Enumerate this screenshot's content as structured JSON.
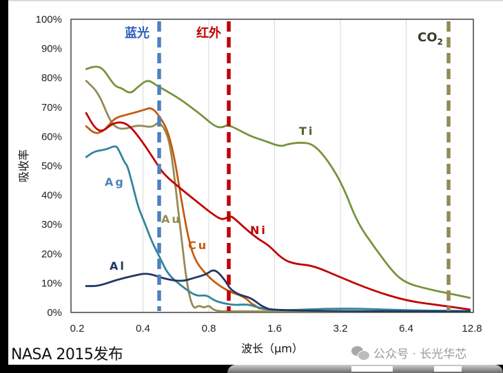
{
  "chart_data": {
    "type": "line",
    "title": "",
    "xlabel": "波长（μm）",
    "ylabel": "吸收率",
    "x_scale": "log2",
    "xlim": [
      0.2,
      12.8
    ],
    "ylim": [
      0,
      100
    ],
    "x_ticks": [
      "0.2",
      "0.4",
      "0.8",
      "1.6",
      "3.2",
      "6.4",
      "12.8"
    ],
    "y_ticks": [
      "0%",
      "10%",
      "20%",
      "30%",
      "40%",
      "50%",
      "60%",
      "70%",
      "80%",
      "90%",
      "100%"
    ],
    "grid": "vertical gridlines only",
    "legend": "inline labels next to curves",
    "series": [
      {
        "name": "Ti",
        "color": "#77933C",
        "points": [
          [
            0.22,
            83
          ],
          [
            0.24,
            84
          ],
          [
            0.26,
            83.5
          ],
          [
            0.28,
            80
          ],
          [
            0.3,
            77
          ],
          [
            0.32,
            76.5
          ],
          [
            0.35,
            74.5
          ],
          [
            0.38,
            77
          ],
          [
            0.42,
            79.5
          ],
          [
            0.46,
            77.5
          ],
          [
            0.5,
            76
          ],
          [
            0.6,
            72.5
          ],
          [
            0.75,
            67
          ],
          [
            0.85,
            63.5
          ],
          [
            0.92,
            63
          ],
          [
            0.97,
            64
          ],
          [
            1.05,
            63
          ],
          [
            1.25,
            60
          ],
          [
            1.45,
            58.5
          ],
          [
            1.7,
            56.5
          ],
          [
            1.85,
            57.5
          ],
          [
            2.1,
            58
          ],
          [
            2.4,
            57.5
          ],
          [
            2.8,
            52
          ],
          [
            3.3,
            43
          ],
          [
            3.8,
            31
          ],
          [
            4.6,
            22
          ],
          [
            5.6,
            13.5
          ],
          [
            6.4,
            10
          ],
          [
            8,
            8
          ],
          [
            10,
            6.5
          ],
          [
            12.5,
            5
          ]
        ]
      },
      {
        "name": "Au",
        "color": "#948A54",
        "points": [
          [
            0.22,
            79
          ],
          [
            0.25,
            75
          ],
          [
            0.28,
            66
          ],
          [
            0.3,
            63
          ],
          [
            0.33,
            62.5
          ],
          [
            0.38,
            64
          ],
          [
            0.44,
            63
          ],
          [
            0.47,
            65
          ],
          [
            0.5,
            63
          ],
          [
            0.53,
            58
          ],
          [
            0.56,
            45
          ],
          [
            0.6,
            25
          ],
          [
            0.64,
            8
          ],
          [
            0.68,
            1
          ],
          [
            0.72,
            2.5
          ],
          [
            0.76,
            1.5
          ],
          [
            0.8,
            2.5
          ],
          [
            0.85,
            0.5
          ],
          [
            1,
            0.3
          ],
          [
            12.5,
            0.2
          ]
        ]
      },
      {
        "name": "Cu",
        "color": "#C55A11",
        "points": [
          [
            0.22,
            63.5
          ],
          [
            0.24,
            61
          ],
          [
            0.26,
            61.5
          ],
          [
            0.28,
            64
          ],
          [
            0.3,
            66.5
          ],
          [
            0.34,
            67.5
          ],
          [
            0.4,
            69
          ],
          [
            0.44,
            70
          ],
          [
            0.48,
            66.5
          ],
          [
            0.52,
            62
          ],
          [
            0.56,
            52
          ],
          [
            0.6,
            38
          ],
          [
            0.65,
            24
          ],
          [
            0.7,
            17
          ],
          [
            0.8,
            12
          ],
          [
            0.9,
            9
          ],
          [
            1,
            7
          ],
          [
            1.1,
            6
          ],
          [
            1.2,
            4.5
          ],
          [
            1.25,
            3
          ],
          [
            1.3,
            2.5
          ],
          [
            1.4,
            0.5
          ],
          [
            12.5,
            0.3
          ]
        ]
      },
      {
        "name": "Ni",
        "color": "#C00000",
        "points": [
          [
            0.22,
            68
          ],
          [
            0.24,
            63
          ],
          [
            0.26,
            61.5
          ],
          [
            0.29,
            64.5
          ],
          [
            0.32,
            65
          ],
          [
            0.35,
            63.5
          ],
          [
            0.4,
            58
          ],
          [
            0.46,
            51
          ],
          [
            0.5,
            47
          ],
          [
            0.6,
            42
          ],
          [
            0.7,
            38
          ],
          [
            0.85,
            33
          ],
          [
            0.93,
            31.5
          ],
          [
            1.0,
            33
          ],
          [
            1.05,
            32
          ],
          [
            1.2,
            28
          ],
          [
            1.35,
            25
          ],
          [
            1.5,
            23
          ],
          [
            1.75,
            18
          ],
          [
            2,
            16.5
          ],
          [
            2.4,
            16
          ],
          [
            3.2,
            12
          ],
          [
            4.5,
            7.5
          ],
          [
            6.4,
            4
          ],
          [
            9,
            2.5
          ],
          [
            12.5,
            1
          ]
        ]
      },
      {
        "name": "Ag",
        "color": "#31859C",
        "points": [
          [
            0.22,
            53
          ],
          [
            0.24,
            55
          ],
          [
            0.27,
            55.5
          ],
          [
            0.3,
            57
          ],
          [
            0.31,
            55.5
          ],
          [
            0.33,
            51
          ],
          [
            0.34,
            50
          ],
          [
            0.36,
            43
          ],
          [
            0.38,
            36
          ],
          [
            0.4,
            32
          ],
          [
            0.44,
            24
          ],
          [
            0.48,
            18.5
          ],
          [
            0.52,
            13
          ],
          [
            0.6,
            9
          ],
          [
            0.7,
            5.5
          ],
          [
            0.78,
            6
          ],
          [
            0.85,
            4
          ],
          [
            0.95,
            3
          ],
          [
            1.05,
            2.5
          ],
          [
            1.2,
            2.8
          ],
          [
            1.3,
            2
          ],
          [
            1.6,
            0.5
          ],
          [
            3.2,
            1.5
          ],
          [
            6.4,
            0.7
          ],
          [
            12.5,
            0.5
          ]
        ]
      },
      {
        "name": "Al",
        "color": "#1F3864",
        "points": [
          [
            0.22,
            9
          ],
          [
            0.25,
            9
          ],
          [
            0.3,
            11
          ],
          [
            0.36,
            12.5
          ],
          [
            0.42,
            13.5
          ],
          [
            0.5,
            11.5
          ],
          [
            0.6,
            10.5
          ],
          [
            0.7,
            12
          ],
          [
            0.78,
            13
          ],
          [
            0.85,
            15
          ],
          [
            0.95,
            11
          ],
          [
            1.0,
            8
          ],
          [
            1.1,
            6
          ],
          [
            1.25,
            5
          ],
          [
            1.4,
            2
          ],
          [
            1.6,
            0.5
          ],
          [
            12.5,
            0.3
          ]
        ]
      }
    ],
    "markers": [
      {
        "label": "蓝光",
        "x": 0.45,
        "color": "#4F81BD"
      },
      {
        "label": "红外",
        "x": 1.0,
        "color": "#C00000"
      },
      {
        "label": "CO2",
        "x": 10.6,
        "color": "#948A54"
      }
    ]
  },
  "source_note": "NASA 2015发布",
  "watermark": {
    "text": "公众号 · 长光华芯",
    "icon": "wechat-icon"
  }
}
